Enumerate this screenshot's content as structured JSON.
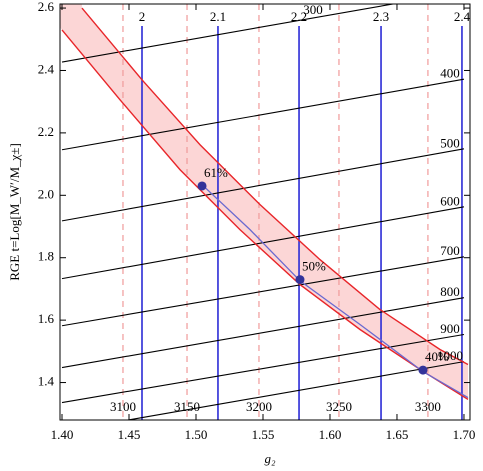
{
  "chart_data": {
    "type": "contour",
    "xlabel": "g₂",
    "ylabel": "RGE t=Log[M_W′/M_χ±]",
    "xlim": [
      1.3985,
      1.7045
    ],
    "ylim": [
      1.28,
      2.613
    ],
    "xticks": [
      {
        "value": 1.4,
        "label": "1.40"
      },
      {
        "value": 1.45,
        "label": "1.45"
      },
      {
        "value": 1.5,
        "label": "1.50"
      },
      {
        "value": 1.55,
        "label": "1.55"
      },
      {
        "value": 1.6,
        "label": "1.60"
      },
      {
        "value": 1.65,
        "label": "1.65"
      },
      {
        "value": 1.7,
        "label": "1.70"
      }
    ],
    "yticks": [
      {
        "value": 1.4,
        "label": "1.4"
      },
      {
        "value": 1.6,
        "label": "1.6"
      },
      {
        "value": 1.8,
        "label": "1.8"
      },
      {
        "value": 2.0,
        "label": "2.0"
      },
      {
        "value": 2.2,
        "label": "2.2"
      },
      {
        "value": 2.4,
        "label": "2.4"
      },
      {
        "value": 2.6,
        "label": "2.6"
      }
    ],
    "blue_lines": {
      "color": "#2b2bd6",
      "x": [
        1.4597,
        1.5164,
        1.5769,
        1.6381,
        1.6985
      ],
      "labels": [
        "2",
        "2.1",
        "2.2",
        "2.3",
        "2.4"
      ]
    },
    "dashed_lines": {
      "color": "#f09a9a",
      "x": [
        1.4455,
        1.4933,
        1.547,
        1.6067,
        1.6731
      ],
      "labels": [
        "3100",
        "3150",
        "3200",
        "3250",
        "3300"
      ]
    },
    "contours": {
      "color": "#000000",
      "series": [
        {
          "label": "300",
          "x": [
            1.4,
            1.7
          ],
          "y": [
            2.427,
            2.653
          ]
        },
        {
          "label": "400",
          "x": [
            1.4,
            1.7
          ],
          "y": [
            2.146,
            2.372
          ]
        },
        {
          "label": "500",
          "x": [
            1.4,
            1.7
          ],
          "y": [
            1.918,
            2.149
          ]
        },
        {
          "label": "600",
          "x": [
            1.4,
            1.7
          ],
          "y": [
            1.733,
            1.963
          ]
        },
        {
          "label": "700",
          "x": [
            1.4,
            1.7
          ],
          "y": [
            1.582,
            1.803
          ]
        },
        {
          "label": "800",
          "x": [
            1.4,
            1.7
          ],
          "y": [
            1.448,
            1.672
          ]
        },
        {
          "label": "900",
          "x": [
            1.4,
            1.7
          ],
          "y": [
            1.336,
            1.554
          ]
        },
        {
          "label": "1000",
          "x": [
            1.4,
            1.7
          ],
          "y": [
            1.243,
            1.467
          ]
        }
      ]
    },
    "band": {
      "fill": "#fcd6d6",
      "color": "#e8262a",
      "upper": {
        "x": [
          1.4149,
          1.4597,
          1.503,
          1.5478,
          1.5925,
          1.6373,
          1.6821,
          1.703
        ],
        "y": [
          2.6,
          2.37,
          2.162,
          1.97,
          1.794,
          1.634,
          1.506,
          1.458
        ]
      },
      "lower": {
        "x": [
          1.4,
          1.4433,
          1.4881,
          1.5328,
          1.5776,
          1.6224,
          1.6672,
          1.703
        ],
        "y": [
          2.53,
          2.306,
          2.082,
          1.89,
          1.714,
          1.57,
          1.442,
          1.346
        ]
      }
    },
    "center": {
      "color": "#6a6ad0",
      "x": [
        1.503,
        1.5403,
        1.5776,
        1.6224,
        1.6694,
        1.703
      ],
      "y": [
        2.04,
        1.89,
        1.726,
        1.586,
        1.435,
        1.352
      ]
    },
    "points": {
      "color": "#33339a",
      "x": [
        1.5045,
        1.5776,
        1.6694
      ],
      "y": [
        2.03,
        1.73,
        1.44
      ],
      "values": [
        61,
        50,
        40
      ],
      "value_labels": [
        "61%",
        "50%",
        "40%"
      ]
    }
  }
}
